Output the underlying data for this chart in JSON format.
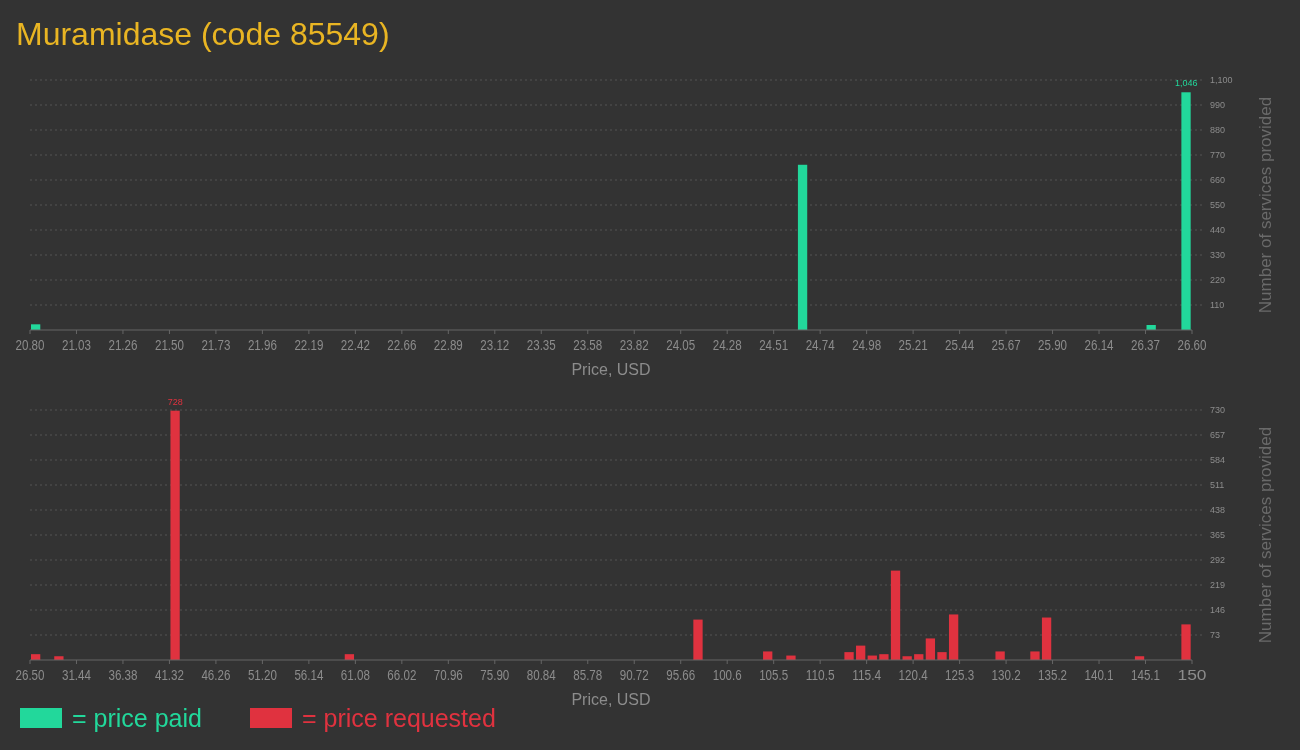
{
  "chart_data": [
    {
      "type": "histogram",
      "title": "Muramidase (code 85549)",
      "xlabel": "Price, USD",
      "ylabel": "Number of services provided",
      "legend": "bottom",
      "grid": "y",
      "bins": [
        20.8,
        20.858,
        20.916,
        20.974,
        21.032,
        21.09,
        21.148,
        21.206,
        21.264,
        21.322,
        21.38,
        21.438,
        21.496,
        21.554,
        21.612,
        21.67,
        21.728,
        21.786,
        21.844,
        21.902,
        21.96,
        22.018,
        22.076,
        22.134,
        22.192,
        22.25,
        22.308,
        22.366,
        22.424,
        22.482,
        22.54,
        22.598,
        22.656,
        22.714,
        22.772,
        22.83,
        22.888,
        22.946,
        23.004,
        23.062,
        23.12,
        23.178,
        23.236,
        23.294,
        23.352,
        23.41,
        23.468,
        23.526,
        23.584,
        23.642,
        23.7,
        23.758,
        23.816,
        23.874,
        23.932,
        23.99,
        24.048,
        24.106,
        24.164,
        24.222,
        24.28,
        24.338,
        24.396,
        24.454,
        24.512,
        24.57,
        24.628,
        24.686,
        24.744,
        24.802,
        24.86,
        24.918,
        24.976,
        25.034,
        25.092,
        25.15,
        25.208,
        25.266,
        25.324,
        25.382,
        25.44,
        25.498,
        25.556,
        25.614,
        25.672,
        25.73,
        25.788,
        25.846,
        25.904,
        25.962,
        26.02,
        26.078,
        26.136,
        26.194,
        26.252,
        26.31,
        26.368,
        26.426,
        26.484,
        26.542,
        26.6
      ],
      "series": [
        {
          "name": "= price paid",
          "color": "#22d89b",
          "values": [
            25,
            0,
            0,
            0,
            0,
            0,
            0,
            0,
            0,
            0,
            0,
            0,
            0,
            0,
            0,
            0,
            0,
            0,
            0,
            0,
            0,
            0,
            0,
            0,
            0,
            0,
            0,
            0,
            0,
            0,
            0,
            0,
            0,
            0,
            0,
            0,
            0,
            0,
            0,
            0,
            0,
            0,
            0,
            0,
            0,
            0,
            0,
            0,
            0,
            0,
            0,
            0,
            0,
            0,
            0,
            0,
            0,
            0,
            0,
            0,
            0,
            0,
            0,
            0,
            0,
            0,
            727,
            0,
            0,
            0,
            0,
            0,
            0,
            0,
            0,
            0,
            0,
            0,
            0,
            0,
            0,
            0,
            0,
            0,
            0,
            0,
            0,
            0,
            0,
            0,
            0,
            0,
            0,
            0,
            0,
            0,
            22,
            0,
            0,
            1046
          ],
          "value_labels": [
            null,
            null,
            null,
            null,
            null,
            null,
            null,
            null,
            null,
            null,
            null,
            null,
            null,
            null,
            null,
            null,
            null,
            null,
            null,
            null,
            null,
            null,
            null,
            null,
            null,
            null,
            null,
            null,
            null,
            null,
            null,
            null,
            null,
            null,
            null,
            null,
            null,
            null,
            null,
            null,
            null,
            null,
            null,
            null,
            null,
            null,
            null,
            null,
            null,
            null,
            null,
            null,
            null,
            null,
            null,
            null,
            null,
            null,
            null,
            null,
            null,
            null,
            null,
            null,
            null,
            null,
            null,
            null,
            null,
            null,
            null,
            null,
            null,
            null,
            null,
            null,
            null,
            null,
            null,
            null,
            null,
            null,
            null,
            null,
            null,
            null,
            null,
            null,
            null,
            null,
            null,
            null,
            null,
            null,
            null,
            null,
            null,
            null,
            null,
            "1,046"
          ]
        }
      ],
      "xlim": [
        20.8,
        26.6
      ],
      "xticks": [
        {
          "value": 20.8,
          "label": "20.80"
        },
        {
          "value": 21.032,
          "label": "21.03"
        },
        {
          "value": 21.264,
          "label": "21.26"
        },
        {
          "value": 21.496,
          "label": "21.50"
        },
        {
          "value": 21.728,
          "label": "21.73"
        },
        {
          "value": 21.96,
          "label": "21.96"
        },
        {
          "value": 22.192,
          "label": "22.19"
        },
        {
          "value": 22.424,
          "label": "22.42"
        },
        {
          "value": 22.656,
          "label": "22.66"
        },
        {
          "value": 22.888,
          "label": "22.89"
        },
        {
          "value": 23.12,
          "label": "23.12"
        },
        {
          "value": 23.352,
          "label": "23.35"
        },
        {
          "value": 23.584,
          "label": "23.58"
        },
        {
          "value": 23.816,
          "label": "23.82"
        },
        {
          "value": 24.048,
          "label": "24.05"
        },
        {
          "value": 24.28,
          "label": "24.28"
        },
        {
          "value": 24.512,
          "label": "24.51"
        },
        {
          "value": 24.744,
          "label": "24.74"
        },
        {
          "value": 24.976,
          "label": "24.98"
        },
        {
          "value": 25.208,
          "label": "25.21"
        },
        {
          "value": 25.44,
          "label": "25.44"
        },
        {
          "value": 25.672,
          "label": "25.67"
        },
        {
          "value": 25.904,
          "label": "25.90"
        },
        {
          "value": 26.136,
          "label": "26.14"
        },
        {
          "value": 26.368,
          "label": "26.37"
        },
        {
          "value": 26.6,
          "label": "26.60"
        }
      ],
      "ylim": [
        0,
        1100
      ],
      "yticks": [
        110,
        220,
        330,
        440,
        550,
        660,
        770,
        880,
        990,
        {
          "value": 1100,
          "label": "1,100"
        }
      ]
    },
    {
      "type": "histogram",
      "xlabel": "Price, USD",
      "ylabel": "Number of services provided",
      "legend": "bottom",
      "grid": "y",
      "bins": [
        26.5,
        27.735,
        28.97,
        30.205,
        31.44,
        32.675,
        33.91,
        35.145,
        36.38,
        37.615,
        38.85,
        40.085,
        41.32,
        42.555,
        43.79,
        45.025,
        46.26,
        47.495,
        48.73,
        49.965,
        51.2,
        52.435,
        53.67,
        54.905,
        56.14,
        57.375,
        58.61,
        59.845,
        61.08,
        62.315,
        63.55,
        64.785,
        66.02,
        67.255,
        68.49,
        69.725,
        70.96,
        72.195,
        73.43,
        74.665,
        75.9,
        77.135,
        78.37,
        79.605,
        80.84,
        82.075,
        83.31,
        84.545,
        85.78,
        87.015,
        88.25,
        89.485,
        90.72,
        91.955,
        93.19,
        94.425,
        95.66,
        96.895,
        98.13,
        99.365,
        100.6,
        101.835,
        103.07,
        104.305,
        105.54,
        106.775,
        108.01,
        109.245,
        110.48,
        111.715,
        112.95,
        114.185,
        115.42,
        116.655,
        117.89,
        119.125,
        120.36,
        121.595,
        122.83,
        124.065,
        125.3,
        126.535,
        127.77,
        129.005,
        130.24,
        131.475,
        132.71,
        133.945,
        135.18,
        136.415,
        137.65,
        138.885,
        140.12,
        141.355,
        142.59,
        143.825,
        145.06,
        146.295,
        147.53,
        148.765,
        150
      ],
      "series": [
        {
          "name": "= price requested",
          "color": "#e0323f",
          "values": [
            17,
            0,
            11,
            0,
            0,
            0,
            0,
            0,
            0,
            0,
            0,
            0,
            728,
            0,
            0,
            0,
            0,
            0,
            0,
            0,
            0,
            0,
            0,
            0,
            0,
            0,
            0,
            17,
            0,
            0,
            0,
            0,
            0,
            0,
            0,
            0,
            0,
            0,
            0,
            0,
            0,
            0,
            0,
            0,
            0,
            0,
            0,
            0,
            0,
            0,
            0,
            0,
            0,
            0,
            0,
            0,
            0,
            118,
            0,
            0,
            0,
            0,
            0,
            25,
            0,
            13,
            0,
            0,
            0,
            0,
            23,
            42,
            13,
            17,
            261,
            11,
            17,
            63,
            23,
            133,
            0,
            0,
            0,
            25,
            0,
            0,
            25,
            124,
            0,
            0,
            0,
            0,
            0,
            0,
            0,
            11,
            0,
            0,
            0,
            104
          ],
          "value_labels": [
            null,
            null,
            null,
            null,
            null,
            null,
            null,
            null,
            null,
            null,
            null,
            null,
            "728",
            null,
            null,
            null,
            null,
            null,
            null,
            null,
            null,
            null,
            null,
            null,
            null,
            null,
            null,
            null,
            null,
            null,
            null,
            null,
            null,
            null,
            null,
            null,
            null,
            null,
            null,
            null,
            null,
            null,
            null,
            null,
            null,
            null,
            null,
            null,
            null,
            null,
            null,
            null,
            null,
            null,
            null,
            null,
            null,
            null,
            null,
            null,
            null,
            null,
            null,
            null,
            null,
            null,
            null,
            null,
            null,
            null,
            null,
            null,
            null,
            null,
            null,
            null,
            null,
            null,
            null,
            null,
            null,
            null,
            null,
            null,
            null,
            null,
            null,
            null,
            null,
            null,
            null,
            null,
            null,
            null,
            null,
            null,
            null,
            null,
            null,
            null
          ]
        }
      ],
      "xlim": [
        26.5,
        150
      ],
      "xticks": [
        {
          "value": 26.5,
          "label": "26.50"
        },
        {
          "value": 31.44,
          "label": "31.44"
        },
        {
          "value": 36.38,
          "label": "36.38"
        },
        {
          "value": 41.32,
          "label": "41.32"
        },
        {
          "value": 46.26,
          "label": "46.26"
        },
        {
          "value": 51.2,
          "label": "51.20"
        },
        {
          "value": 56.14,
          "label": "56.14"
        },
        {
          "value": 61.08,
          "label": "61.08"
        },
        {
          "value": 66.02,
          "label": "66.02"
        },
        {
          "value": 70.96,
          "label": "70.96"
        },
        {
          "value": 75.9,
          "label": "75.90"
        },
        {
          "value": 80.84,
          "label": "80.84"
        },
        {
          "value": 85.78,
          "label": "85.78"
        },
        {
          "value": 90.72,
          "label": "90.72"
        },
        {
          "value": 95.66,
          "label": "95.66"
        },
        {
          "value": 100.6,
          "label": "100.6"
        },
        {
          "value": 105.54,
          "label": "105.5"
        },
        {
          "value": 110.48,
          "label": "110.5"
        },
        {
          "value": 115.42,
          "label": "115.4"
        },
        {
          "value": 120.36,
          "label": "120.4"
        },
        {
          "value": 125.3,
          "label": "125.3"
        },
        {
          "value": 130.24,
          "label": "130.2"
        },
        {
          "value": 135.18,
          "label": "135.2"
        },
        {
          "value": 140.12,
          "label": "140.1"
        },
        {
          "value": 145.06,
          "label": "145.1"
        },
        {
          "value": 150,
          "label": "150"
        }
      ],
      "ylim": [
        0,
        730
      ],
      "yticks": [
        73,
        146,
        219,
        292,
        365,
        438,
        511,
        584,
        657,
        730
      ]
    }
  ]
}
